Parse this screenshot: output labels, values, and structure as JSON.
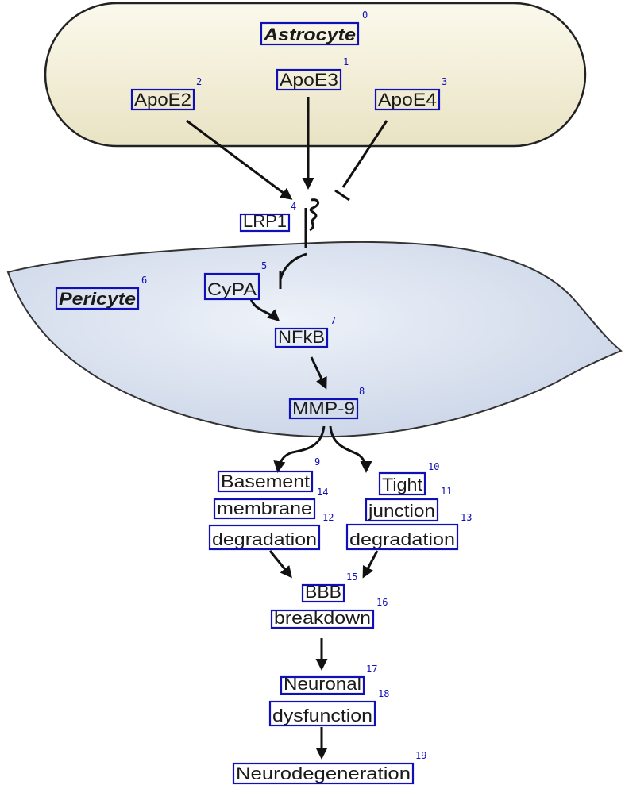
{
  "cells": {
    "astrocyte": "Astrocyte",
    "pericyte": "Pericyte"
  },
  "labels": [
    {
      "index": "0",
      "text": "Astrocyte"
    },
    {
      "index": "1",
      "text": "ApoE3"
    },
    {
      "index": "2",
      "text": "ApoE2"
    },
    {
      "index": "3",
      "text": "ApoE4"
    },
    {
      "index": "4",
      "text": "LRP1"
    },
    {
      "index": "5",
      "text": "CyPA"
    },
    {
      "index": "6",
      "text": "Pericyte"
    },
    {
      "index": "7",
      "text": "NFkB"
    },
    {
      "index": "8",
      "text": "MMP-9"
    },
    {
      "index": "9",
      "text": "Basement"
    },
    {
      "index": "10",
      "text": "Tight"
    },
    {
      "index": "11",
      "text": "junction"
    },
    {
      "index": "12",
      "text": "degradation"
    },
    {
      "index": "13",
      "text": "degradation"
    },
    {
      "index": "14",
      "text": "membrane"
    },
    {
      "index": "15",
      "text": "BBB"
    },
    {
      "index": "16",
      "text": "breakdown"
    },
    {
      "index": "17",
      "text": "Neuronal"
    },
    {
      "index": "18",
      "text": "dysfunction"
    },
    {
      "index": "19",
      "text": "Neurodegeneration"
    }
  ],
  "colors": {
    "astrocyte_fill": "#f3efd9",
    "pericyte_fill": "#dfe6f1",
    "annotation_box": "#1010b8",
    "arrow": "#111111"
  }
}
